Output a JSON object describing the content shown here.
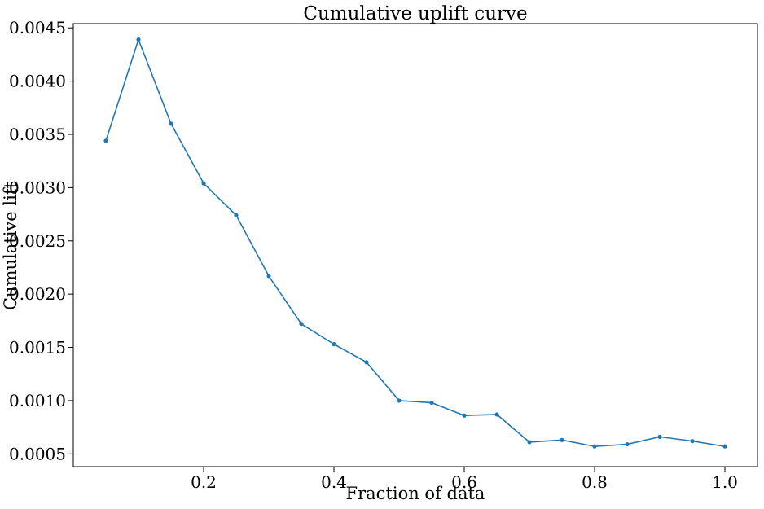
{
  "chart_data": {
    "type": "line",
    "title": "Cumulative uplift curve",
    "xlabel": "Fraction of data",
    "ylabel": "Cumulative lift",
    "x": [
      0.05,
      0.1,
      0.15,
      0.2,
      0.25,
      0.3,
      0.35,
      0.4,
      0.45,
      0.5,
      0.55,
      0.6,
      0.65,
      0.7,
      0.75,
      0.8,
      0.85,
      0.9,
      0.95,
      1.0
    ],
    "series": [
      {
        "values": [
          0.00344,
          0.00439,
          0.0036,
          0.00304,
          0.00274,
          0.00217,
          0.00172,
          0.00153,
          0.00136,
          0.001,
          0.00098,
          0.00086,
          0.00087,
          0.00061,
          0.00063,
          0.00057,
          0.00059,
          0.00066,
          0.00062,
          0.00057
        ],
        "color": "#1f77b4",
        "marker": "dot"
      }
    ],
    "xlim": [
      0.0,
      1.05
    ],
    "ylim": [
      0.00038,
      0.00454
    ],
    "xticks": [
      0.2,
      0.4,
      0.6,
      0.8,
      1.0
    ],
    "xtick_labels": [
      "0.2",
      "0.4",
      "0.6",
      "0.8",
      "1.0"
    ],
    "yticks": [
      0.0005,
      0.001,
      0.0015,
      0.002,
      0.0025,
      0.003,
      0.0035,
      0.004,
      0.0045
    ],
    "ytick_labels": [
      "0.0005",
      "0.0010",
      "0.0015",
      "0.0020",
      "0.0025",
      "0.0030",
      "0.0035",
      "0.0040",
      "0.0045"
    ],
    "grid": false,
    "legend": false
  }
}
